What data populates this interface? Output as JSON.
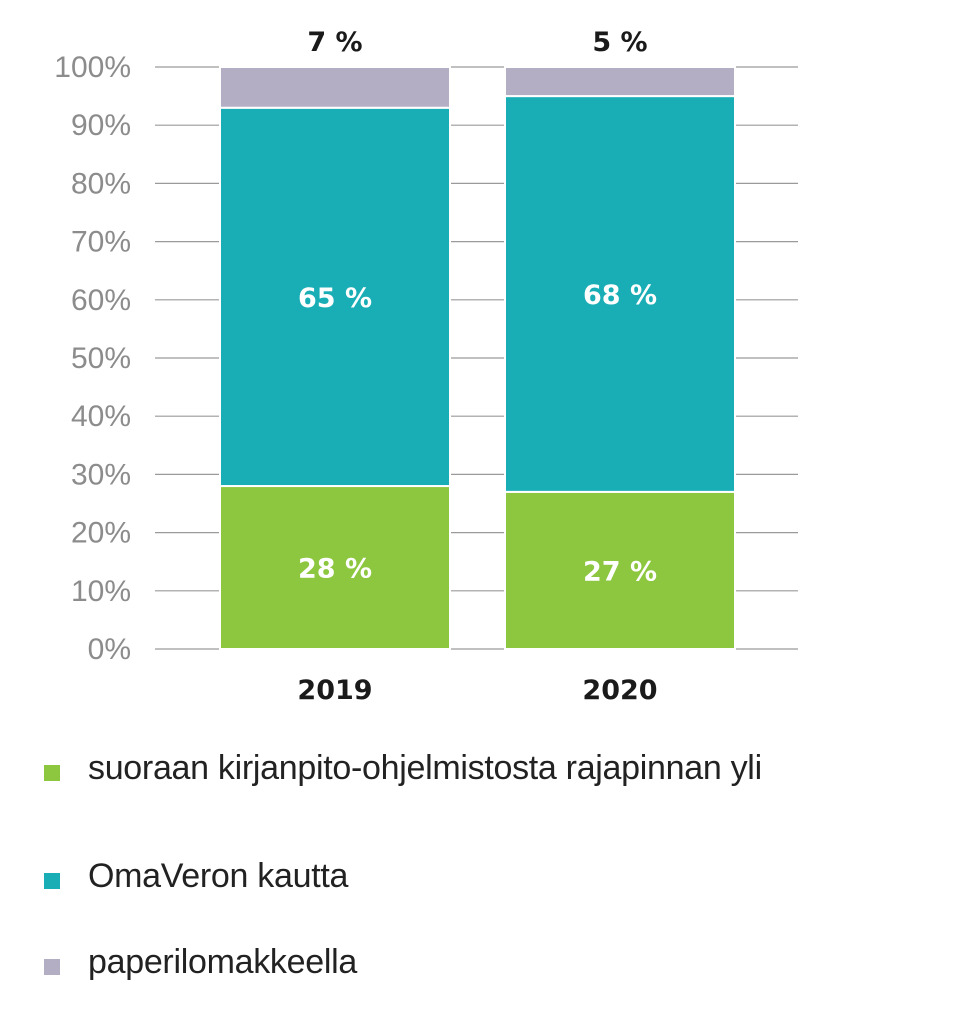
{
  "chart_data": {
    "type": "bar",
    "stacked": true,
    "categories": [
      "2019",
      "2020"
    ],
    "series": [
      {
        "name": "suoraan kirjanpito-ohjelmistosta rajapinnan yli",
        "values": [
          28,
          27
        ],
        "labels": [
          "28 %",
          "27 %"
        ],
        "color": "#8dc63f"
      },
      {
        "name": "OmaVeron kautta",
        "values": [
          65,
          68
        ],
        "labels": [
          "65 %",
          "68 %"
        ],
        "color": "#19aeb5"
      },
      {
        "name": "paperilomakkeella",
        "values": [
          7,
          5
        ],
        "labels": [
          "7 %",
          "5 %"
        ],
        "color": "#b3aec4"
      }
    ],
    "ylim": [
      0,
      100
    ],
    "yticks": [
      "0%",
      "10%",
      "20%",
      "30%",
      "40%",
      "50%",
      "60%",
      "70%",
      "80%",
      "90%",
      "100%"
    ],
    "grid": true,
    "legend_position": "bottom"
  }
}
